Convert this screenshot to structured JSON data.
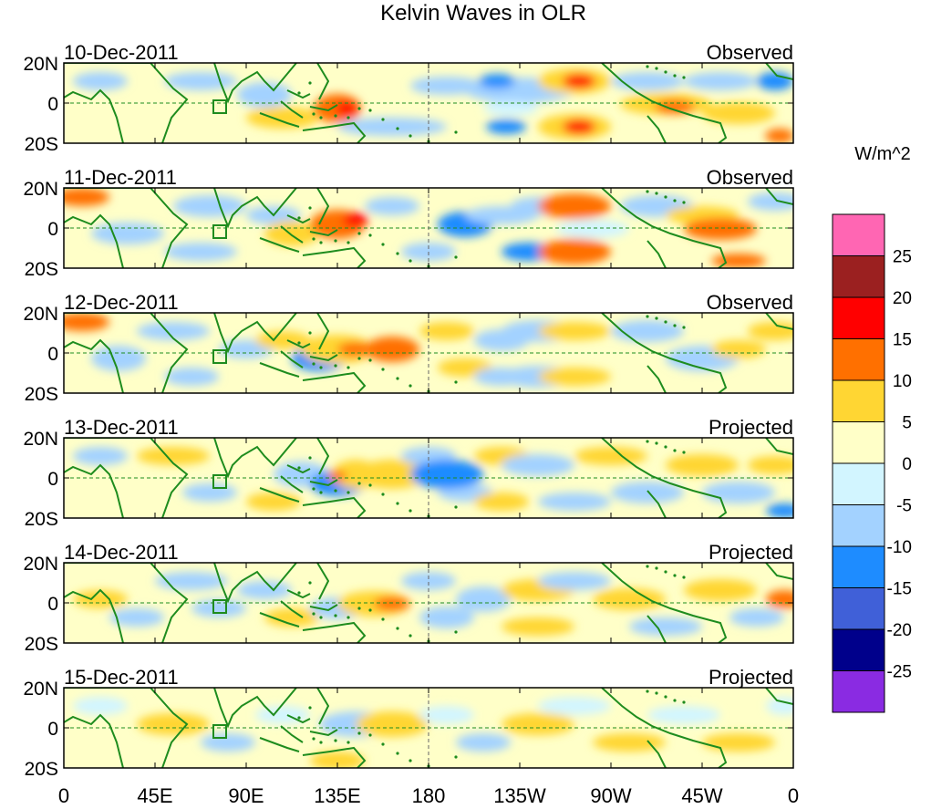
{
  "title": "Kelvin Waves in OLR",
  "units_label": "W/m^2",
  "y_ticks": [
    "20N",
    "0",
    "20S"
  ],
  "x_ticks": [
    "0",
    "45E",
    "90E",
    "135E",
    "180",
    "135W",
    "90W",
    "45W",
    "0"
  ],
  "colorbar": {
    "colors": [
      "#ff66b3",
      "#9b2020",
      "#ff0000",
      "#ff7000",
      "#ffd633",
      "#ffffc8",
      "#d2f5ff",
      "#a3d2ff",
      "#1e8cff",
      "#4060d8",
      "#00008b",
      "#8a2be2"
    ],
    "labels": [
      "25",
      "20",
      "15",
      "10",
      "5",
      "0",
      "-5",
      "-10",
      "-15",
      "-20",
      "-25"
    ]
  },
  "panels": [
    {
      "date": "10-Dec-2011",
      "type": "Observed"
    },
    {
      "date": "11-Dec-2011",
      "type": "Observed"
    },
    {
      "date": "12-Dec-2011",
      "type": "Observed"
    },
    {
      "date": "13-Dec-2011",
      "type": "Projected"
    },
    {
      "date": "14-Dec-2011",
      "type": "Projected"
    },
    {
      "date": "15-Dec-2011",
      "type": "Projected"
    }
  ]
}
